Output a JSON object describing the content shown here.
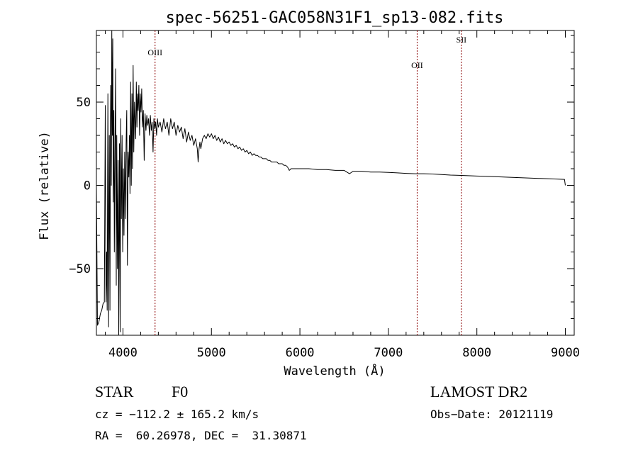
{
  "chart_data": {
    "type": "line",
    "title": "spec-56251-GAC058N31F1_sp13-082.fits",
    "xlabel": "Wavelength (Å)",
    "ylabel": "Flux (relative)",
    "xlim": [
      3700,
      9100
    ],
    "ylim": [
      -90,
      93
    ],
    "xticks": [
      4000,
      5000,
      6000,
      7000,
      8000,
      9000
    ],
    "yticks": [
      -50,
      0,
      50
    ],
    "grid": false,
    "line_color": "#000000",
    "marker_color": "#8b0000",
    "series": [
      {
        "values": [
          [
            3700,
            -1
          ],
          [
            3712,
            -84
          ],
          [
            3728,
            -82
          ],
          [
            3745,
            -77
          ],
          [
            3760,
            -75
          ],
          [
            3775,
            -71
          ],
          [
            3790,
            -70
          ],
          [
            3800,
            48
          ],
          [
            3808,
            -70
          ],
          [
            3815,
            -40
          ],
          [
            3822,
            -75
          ],
          [
            3830,
            55
          ],
          [
            3838,
            -85
          ],
          [
            3846,
            30
          ],
          [
            3853,
            -75
          ],
          [
            3860,
            60
          ],
          [
            3868,
            0
          ],
          [
            3874,
            93
          ],
          [
            3880,
            30
          ],
          [
            3885,
            88
          ],
          [
            3890,
            -10
          ],
          [
            3897,
            45
          ],
          [
            3903,
            -40
          ],
          [
            3910,
            20
          ],
          [
            3917,
            70
          ],
          [
            3924,
            -60
          ],
          [
            3930,
            30
          ],
          [
            3938,
            -50
          ],
          [
            3945,
            15
          ],
          [
            3952,
            -90
          ],
          [
            3960,
            25
          ],
          [
            3968,
            -88
          ],
          [
            3975,
            40
          ],
          [
            3982,
            -20
          ],
          [
            3990,
            30
          ],
          [
            3997,
            -40
          ],
          [
            4005,
            10
          ],
          [
            4012,
            -30
          ],
          [
            4020,
            20
          ],
          [
            4028,
            -20
          ],
          [
            4036,
            25
          ],
          [
            4043,
            45
          ],
          [
            4050,
            -48
          ],
          [
            4058,
            20
          ],
          [
            4066,
            5
          ],
          [
            4073,
            30
          ],
          [
            4080,
            -5
          ],
          [
            4087,
            62
          ],
          [
            4094,
            0
          ],
          [
            4101,
            55
          ],
          [
            4108,
            10
          ],
          [
            4115,
            72
          ],
          [
            4122,
            20
          ],
          [
            4130,
            50
          ],
          [
            4137,
            40
          ],
          [
            4144,
            28
          ],
          [
            4151,
            62
          ],
          [
            4158,
            35
          ],
          [
            4165,
            55
          ],
          [
            4172,
            45
          ],
          [
            4180,
            60
          ],
          [
            4188,
            30
          ],
          [
            4196,
            55
          ],
          [
            4204,
            44
          ],
          [
            4212,
            58
          ],
          [
            4220,
            35
          ],
          [
            4230,
            45
          ],
          [
            4240,
            15
          ],
          [
            4250,
            43
          ],
          [
            4260,
            33
          ],
          [
            4270,
            42
          ],
          [
            4280,
            36
          ],
          [
            4290,
            40
          ],
          [
            4300,
            30
          ],
          [
            4310,
            42
          ],
          [
            4320,
            33
          ],
          [
            4330,
            38
          ],
          [
            4340,
            20
          ],
          [
            4350,
            40
          ],
          [
            4360,
            34
          ],
          [
            4370,
            38
          ],
          [
            4380,
            30
          ],
          [
            4390,
            40
          ],
          [
            4400,
            35
          ],
          [
            4420,
            38
          ],
          [
            4440,
            32
          ],
          [
            4460,
            40
          ],
          [
            4480,
            34
          ],
          [
            4500,
            38
          ],
          [
            4520,
            30
          ],
          [
            4540,
            40
          ],
          [
            4560,
            34
          ],
          [
            4580,
            38
          ],
          [
            4600,
            30
          ],
          [
            4620,
            36
          ],
          [
            4640,
            32
          ],
          [
            4660,
            35
          ],
          [
            4680,
            28
          ],
          [
            4700,
            34
          ],
          [
            4720,
            26
          ],
          [
            4740,
            32
          ],
          [
            4760,
            27
          ],
          [
            4780,
            30
          ],
          [
            4800,
            24
          ],
          [
            4820,
            28
          ],
          [
            4840,
            22
          ],
          [
            4850,
            14
          ],
          [
            4860,
            22
          ],
          [
            4870,
            26
          ],
          [
            4880,
            22
          ],
          [
            4900,
            28
          ],
          [
            4920,
            30
          ],
          [
            4940,
            28
          ],
          [
            4960,
            31
          ],
          [
            4980,
            29
          ],
          [
            5000,
            31
          ],
          [
            5020,
            28
          ],
          [
            5040,
            30
          ],
          [
            5060,
            27
          ],
          [
            5080,
            29
          ],
          [
            5100,
            26
          ],
          [
            5120,
            28
          ],
          [
            5140,
            25
          ],
          [
            5160,
            27
          ],
          [
            5180,
            25
          ],
          [
            5200,
            26
          ],
          [
            5220,
            24
          ],
          [
            5240,
            25
          ],
          [
            5260,
            23
          ],
          [
            5280,
            24
          ],
          [
            5300,
            22
          ],
          [
            5320,
            23
          ],
          [
            5340,
            21
          ],
          [
            5360,
            22
          ],
          [
            5380,
            20
          ],
          [
            5400,
            21
          ],
          [
            5420,
            19
          ],
          [
            5440,
            20
          ],
          [
            5460,
            18
          ],
          [
            5480,
            19
          ],
          [
            5500,
            18
          ],
          [
            5520,
            18
          ],
          [
            5540,
            17
          ],
          [
            5560,
            17
          ],
          [
            5580,
            16
          ],
          [
            5600,
            16
          ],
          [
            5620,
            16
          ],
          [
            5640,
            15
          ],
          [
            5660,
            15
          ],
          [
            5680,
            14
          ],
          [
            5700,
            14
          ],
          [
            5720,
            14
          ],
          [
            5740,
            14
          ],
          [
            5760,
            13
          ],
          [
            5780,
            13
          ],
          [
            5800,
            13
          ],
          [
            5820,
            12
          ],
          [
            5840,
            12
          ],
          [
            5860,
            11
          ],
          [
            5880,
            9
          ],
          [
            5900,
            10
          ],
          [
            5950,
            10
          ],
          [
            6000,
            10
          ],
          [
            6100,
            10
          ],
          [
            6200,
            9.5
          ],
          [
            6300,
            9.5
          ],
          [
            6400,
            9
          ],
          [
            6500,
            9
          ],
          [
            6560,
            7
          ],
          [
            6600,
            8.5
          ],
          [
            6700,
            8.5
          ],
          [
            6800,
            8
          ],
          [
            6900,
            8
          ],
          [
            7000,
            7.8
          ],
          [
            7100,
            7.5
          ],
          [
            7200,
            7.2
          ],
          [
            7300,
            7
          ],
          [
            7400,
            7
          ],
          [
            7500,
            6.8
          ],
          [
            7600,
            6.5
          ],
          [
            7700,
            6.2
          ],
          [
            7800,
            6
          ],
          [
            7900,
            5.8
          ],
          [
            8000,
            5.6
          ],
          [
            8100,
            5.4
          ],
          [
            8200,
            5.2
          ],
          [
            8300,
            5
          ],
          [
            8400,
            4.8
          ],
          [
            8500,
            4.6
          ],
          [
            8600,
            4.4
          ],
          [
            8700,
            4.2
          ],
          [
            8800,
            4
          ],
          [
            8900,
            3.8
          ],
          [
            8990,
            3.6
          ],
          [
            9000,
            0
          ]
        ]
      }
    ],
    "lines": [
      {
        "label": "OIII",
        "x": 4363
      },
      {
        "label": "OII",
        "x": 7325
      },
      {
        "label": "SII",
        "x": 7825
      }
    ]
  },
  "info": {
    "class_label": "STAR",
    "subclass": "F0",
    "survey": "LAMOST DR2",
    "cz": "cz = −112.2 ± 165.2 km/s",
    "obs_date": "Obs−Date: 20121119",
    "coords": "RA =  60.26978, DEC =  31.30871"
  }
}
